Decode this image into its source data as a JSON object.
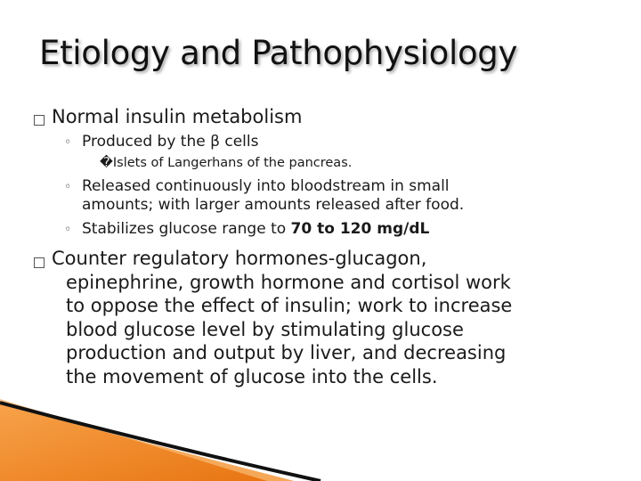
{
  "slide": {
    "title": "Etiology and Pathophysiology",
    "bullet1": {
      "text": "Normal insulin metabolism",
      "sub1": "Produced by the β cells",
      "sub1_detail_marker": "�",
      "sub1_detail": "Islets of Langerhans of the pancreas.",
      "sub2_line1": "Released continuously into bloodstream in small",
      "sub2_line2": "amounts; with larger amounts released after food.",
      "sub3_prefix": "Stabilizes glucose range to ",
      "sub3_value": "70 to 120 mg/dL"
    },
    "bullet2": {
      "line1": "Counter regulatory hormones-glucagon,",
      "line2": "epinephrine, growth hormone and cortisol work",
      "line3": "to oppose the effect of insulin; work to increase",
      "line4": "blood glucose level by stimulating glucose",
      "line5": "production and output by liver, and decreasing",
      "line6": "the movement of glucose into the cells."
    },
    "bullet_marker": "◦",
    "colors": {
      "accent": "#f28a1e",
      "dark_stroke": "#111111"
    }
  }
}
